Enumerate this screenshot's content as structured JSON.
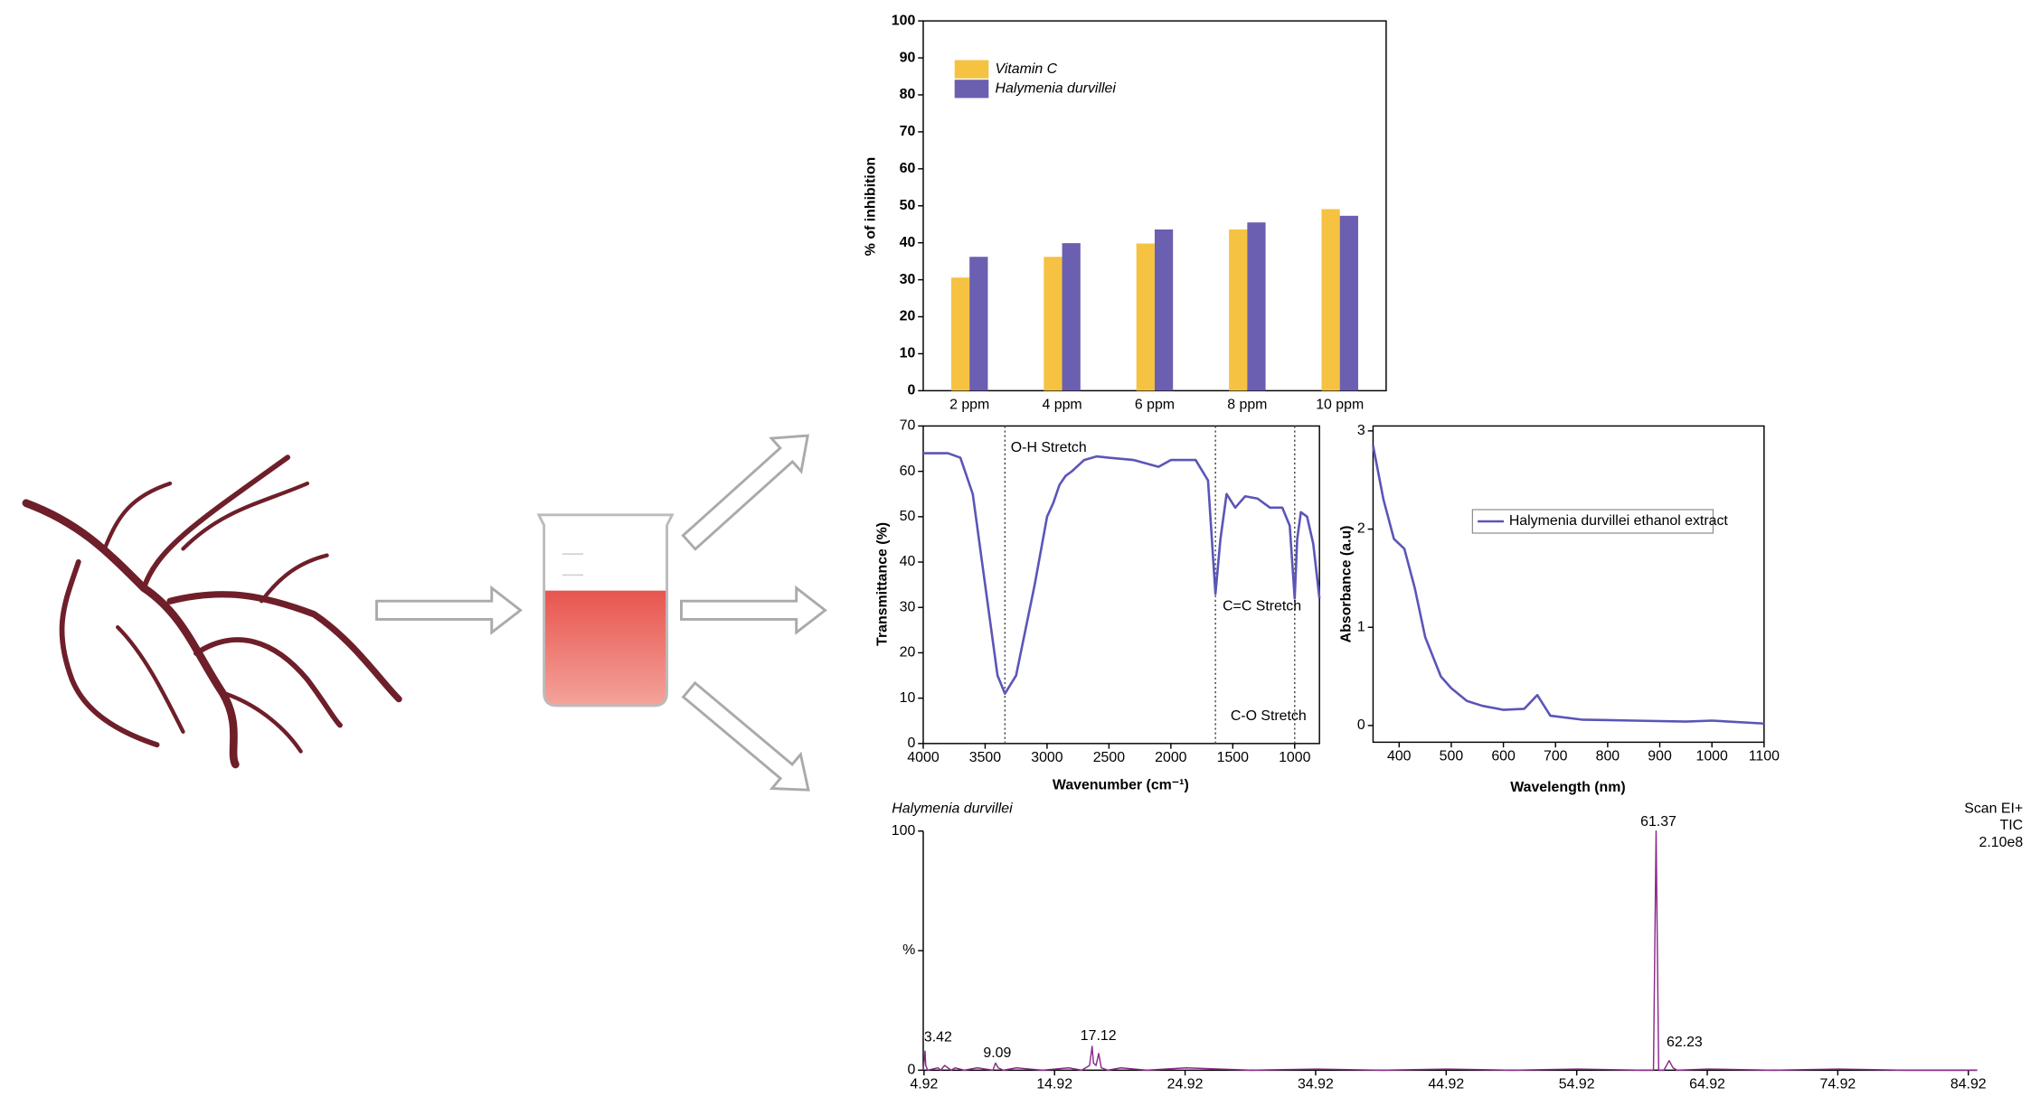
{
  "chart_data": [
    {
      "type": "bar",
      "ylabel": "% of inhibition",
      "categories": [
        "2 ppm",
        "4 ppm",
        "6 ppm",
        "8 ppm",
        "10 ppm"
      ],
      "series": [
        {
          "name": "Vitamin C",
          "color": "#f5c242",
          "values": [
            30.6,
            36.2,
            39.8,
            43.6,
            49.1
          ]
        },
        {
          "name": "Halymenia durvillei",
          "color": "#6a5fb0",
          "values": [
            36.2,
            39.9,
            43.6,
            45.5,
            47.3
          ]
        }
      ],
      "ylim": [
        0,
        100
      ],
      "yticks": [
        0,
        10,
        20,
        30,
        40,
        50,
        60,
        70,
        80,
        90,
        100
      ],
      "legend": "upper left"
    },
    {
      "type": "line",
      "xlabel": "Wavenumber (cm⁻¹)",
      "ylabel": "Transmittance (%)",
      "series": [
        {
          "color": "#5b55b8",
          "x": [
            4000,
            3800,
            3700,
            3600,
            3500,
            3400,
            3340,
            3250,
            3100,
            3000,
            2950,
            2900,
            2850,
            2800,
            2700,
            2600,
            2500,
            2300,
            2100,
            2000,
            1800,
            1700,
            1640,
            1600,
            1550,
            1480,
            1400,
            1300,
            1200,
            1100,
            1040,
            1000,
            980,
            950,
            900,
            850,
            800
          ],
          "values": [
            64,
            64,
            63,
            55,
            35,
            15,
            11,
            15,
            35,
            50,
            53,
            57,
            59,
            60,
            62.5,
            63.3,
            63,
            62.5,
            61,
            62.5,
            62.5,
            58,
            33,
            45,
            55,
            52,
            54.5,
            54,
            52,
            52,
            48,
            32,
            45,
            51,
            50,
            44,
            32
          ]
        }
      ],
      "xlim": [
        4000,
        800
      ],
      "xticks": [
        4000,
        3500,
        3000,
        2500,
        2000,
        1500,
        1000
      ],
      "ylim": [
        0,
        70
      ],
      "yticks": [
        0,
        10,
        20,
        30,
        40,
        50,
        60,
        70
      ],
      "vlines": [
        3340,
        1640,
        1000
      ],
      "annotations": [
        {
          "text": "O-H Stretch",
          "x": 3293,
          "y": 65.1
        },
        {
          "text": "C=C Stretch",
          "x": 1582,
          "y": 30.2
        },
        {
          "text": "C-O Stretch",
          "x": 1518,
          "y": 6.0
        }
      ]
    },
    {
      "type": "line",
      "xlabel": "Wavelength (nm)",
      "ylabel": "Absorbance (a.u)",
      "series": [
        {
          "name": "Halymenia durvillei ethanol extract",
          "color": "#5b55b8",
          "x": [
            350,
            370,
            390,
            410,
            430,
            450,
            480,
            500,
            530,
            560,
            600,
            640,
            665,
            690,
            750,
            850,
            950,
            1000,
            1100
          ],
          "values": [
            2.85,
            2.3,
            1.9,
            1.8,
            1.4,
            0.9,
            0.5,
            0.38,
            0.25,
            0.2,
            0.16,
            0.17,
            0.31,
            0.1,
            0.06,
            0.05,
            0.04,
            0.05,
            0.02
          ]
        }
      ],
      "xlim": [
        350,
        1100
      ],
      "xticks": [
        400,
        500,
        600,
        700,
        800,
        900,
        1000,
        1100
      ],
      "ylim": [
        -0.17,
        3.05
      ],
      "yticks": [
        0,
        1,
        2,
        3
      ],
      "legend": "upper right"
    },
    {
      "type": "line",
      "title": "Halymenia durvillei",
      "info": [
        "Scan EI+",
        "TIC",
        "2.10e8"
      ],
      "series": [
        {
          "color": "#8b2a8b",
          "x": [
            4.86,
            5.0,
            5.05,
            5.2,
            6,
            6.2,
            6.5,
            7,
            7.3,
            8,
            9,
            10.2,
            10.4,
            10.6,
            11,
            12,
            14,
            16,
            17,
            17.6,
            17.8,
            17.9,
            18.1,
            18.3,
            18.5,
            19,
            20,
            22,
            25,
            30,
            35,
            40,
            45,
            50,
            55,
            60,
            60.8,
            61.0,
            61.2,
            61.6,
            62.0,
            62.3,
            62.6,
            65,
            70,
            75,
            80,
            85.6
          ],
          "values": [
            0,
            8,
            2,
            0,
            1,
            0,
            2,
            0,
            1,
            0,
            1,
            0,
            3,
            1,
            0,
            1,
            0,
            1,
            0,
            2,
            10,
            3,
            2,
            7,
            1,
            0,
            1,
            0,
            1,
            0,
            0.5,
            0,
            0.5,
            0,
            0.5,
            0,
            0,
            100,
            0,
            0,
            4,
            1,
            0,
            0.5,
            0,
            0.5,
            0,
            0
          ]
        }
      ],
      "xlim": [
        4.86,
        85.6
      ],
      "xticks": [
        4.92,
        14.92,
        24.92,
        34.92,
        44.92,
        54.92,
        64.92,
        74.92,
        84.92
      ],
      "ylim": [
        0,
        100
      ],
      "yticks": [
        0,
        {
          "value": 50,
          "label": "%"
        },
        100
      ],
      "annotations": [
        {
          "text": "3.42",
          "x": 4.92,
          "y": 13.7
        },
        {
          "text": "9.09",
          "x": 9.46,
          "y": 7.1
        },
        {
          "text": "17.12",
          "x": 16.9,
          "y": 14.2
        },
        {
          "text": "61.37",
          "x": 59.8,
          "y": 103.8
        },
        {
          "text": "62.23",
          "x": 61.8,
          "y": 11.5
        }
      ]
    }
  ]
}
